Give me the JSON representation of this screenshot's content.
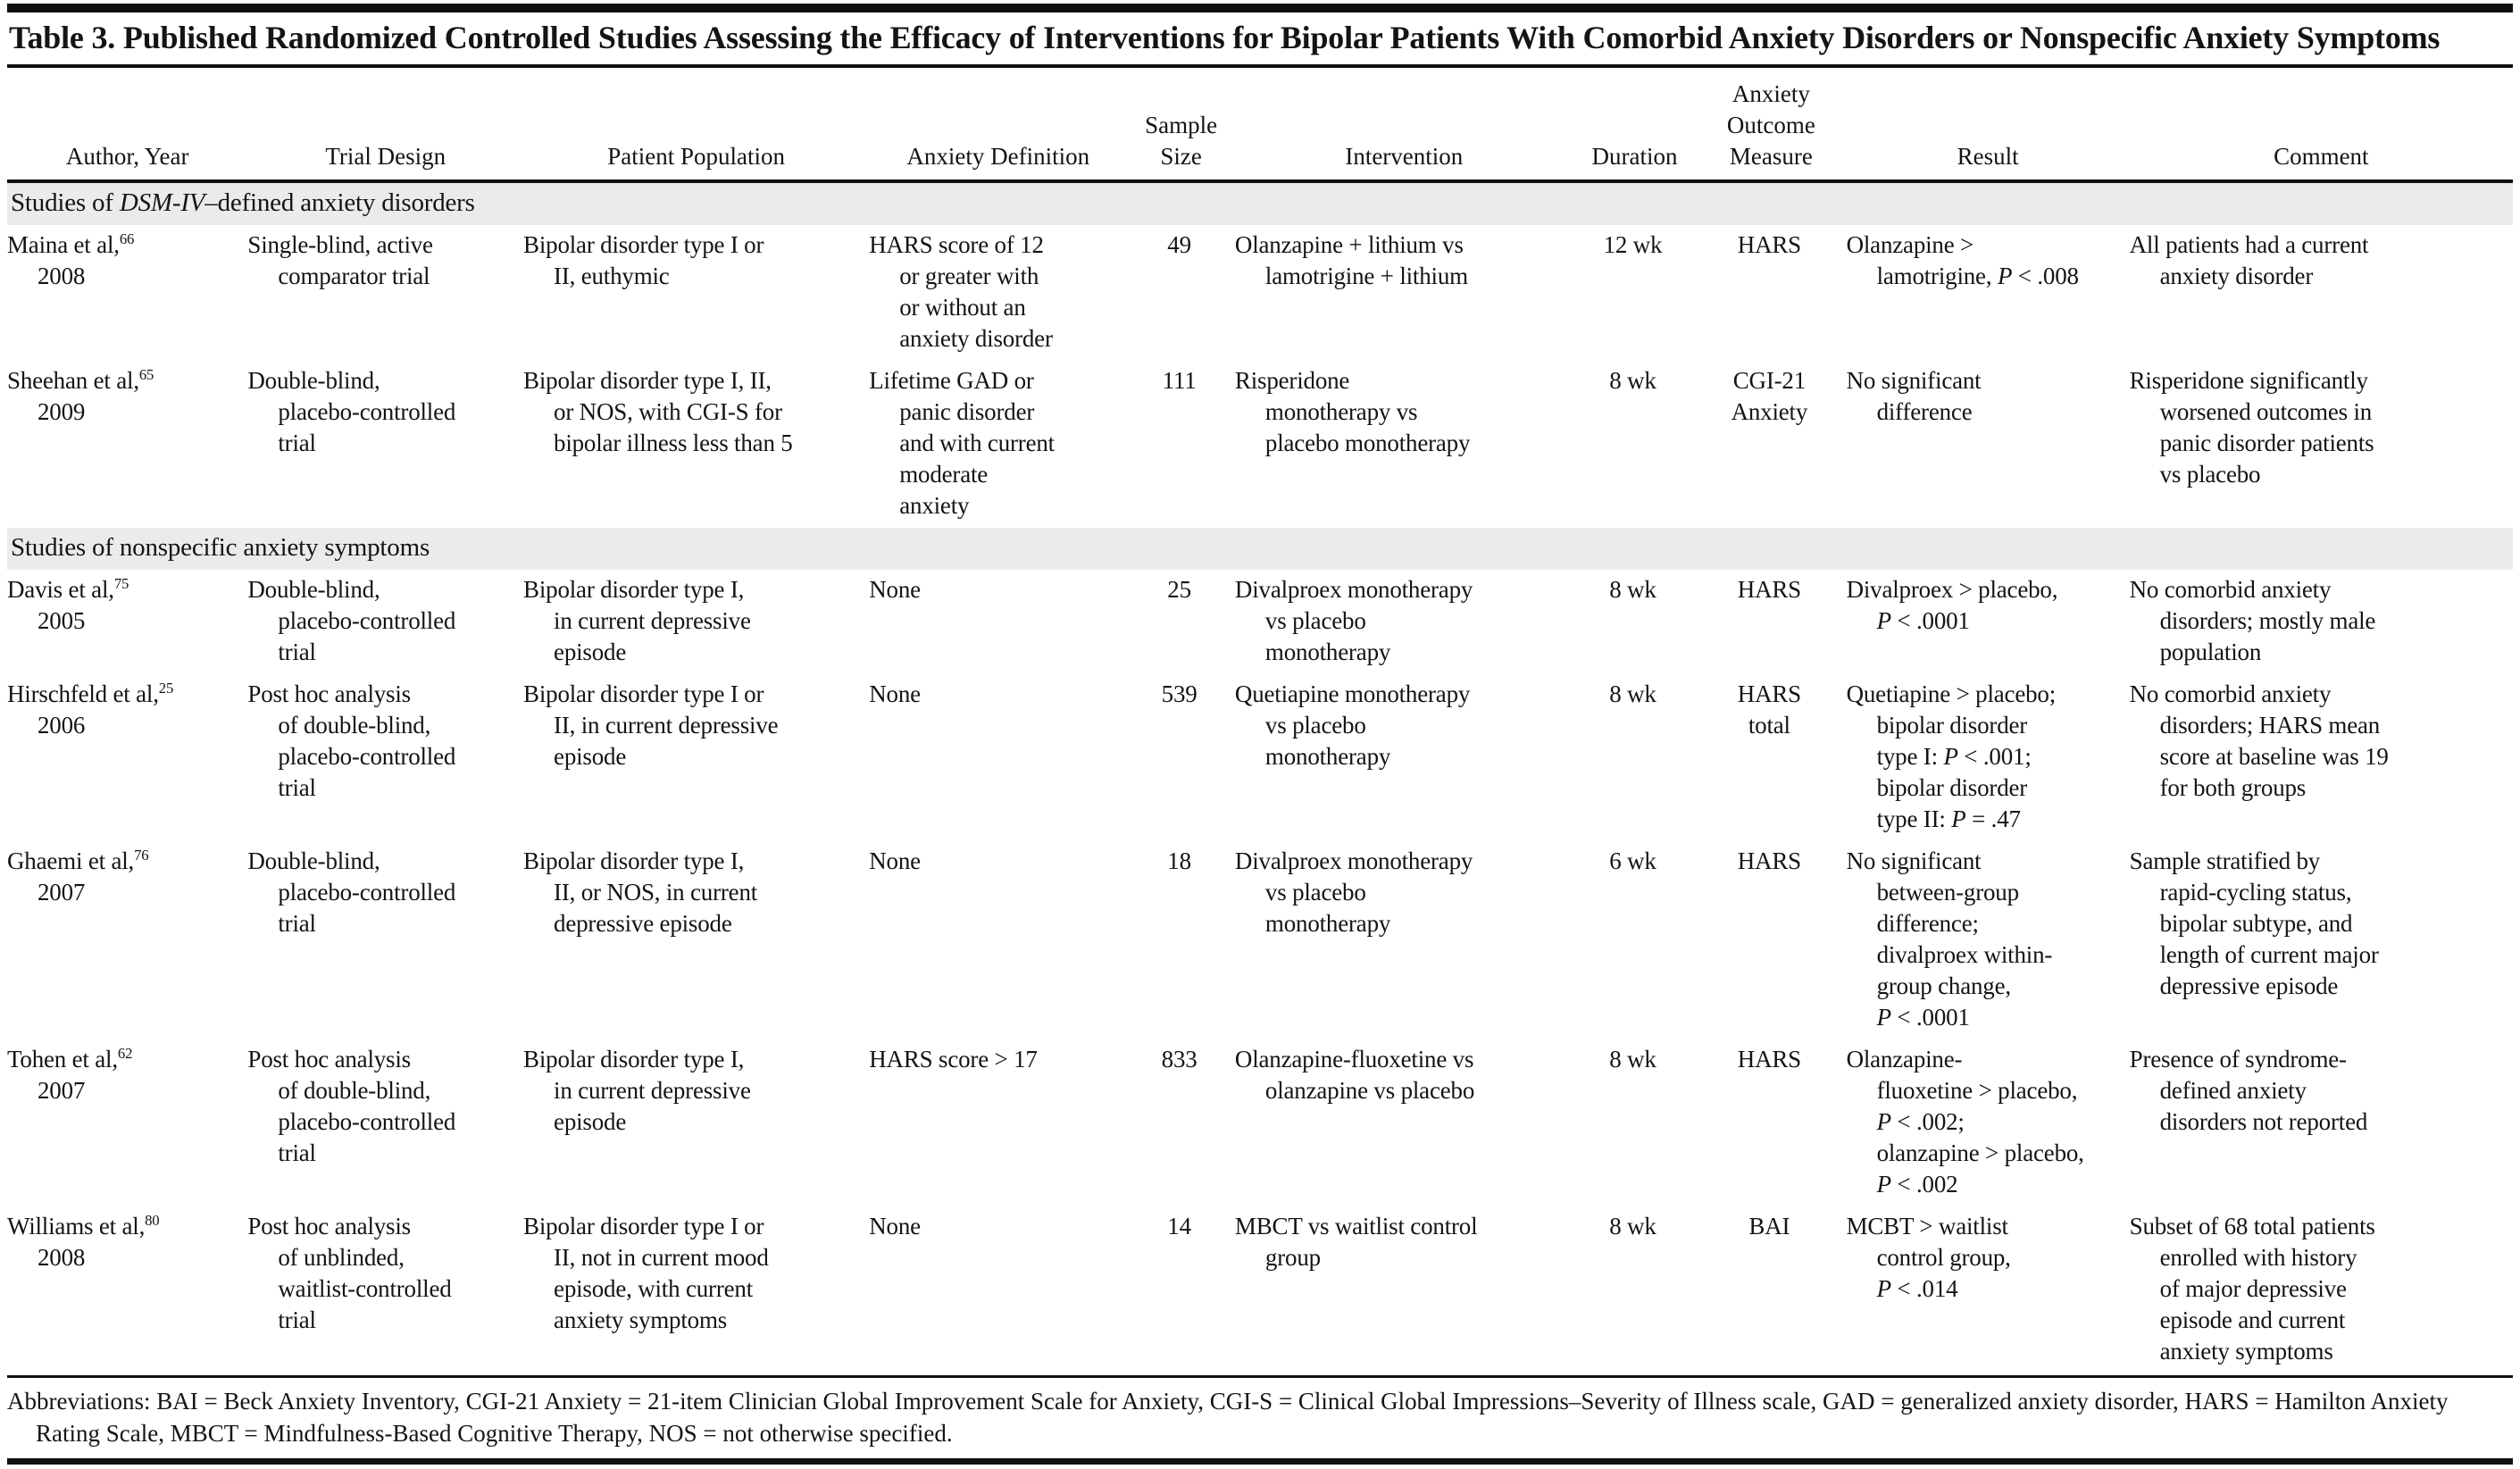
{
  "title": "Table 3. Published Randomized Controlled Studies Assessing the Efficacy of Interventions for Bipolar Patients With Comorbid Anxiety Disorders or Nonspecific Anxiety Symptoms",
  "colors": {
    "text": "#141414",
    "rule": "#111111",
    "section_band": "#ebebeb"
  },
  "table": {
    "columns": [
      "Author, Year",
      "Trial Design",
      "Patient Population",
      "Anxiety Definition",
      "Sample\nSize",
      "Intervention",
      "Duration",
      "Anxiety\nOutcome\nMeasure",
      "Result",
      "Comment"
    ],
    "sections": [
      {
        "label": "Studies of *DSM-IV*–defined anxiety disorders",
        "rows": [
          {
            "author": "Maina et al,^66^\n2008",
            "trial_design": "Single-blind, active\ncomparator trial",
            "population": "Bipolar disorder type I or\nII, euthymic",
            "anxiety_definition": "HARS score of 12\nor greater with\nor without an\nanxiety disorder",
            "sample_size": "49",
            "intervention": "Olanzapine + lithium vs\nlamotrigine + lithium",
            "duration": "12 wk",
            "outcome_measure": "HARS",
            "result": "Olanzapine >\nlamotrigine, *P* < .008",
            "comment": "All patients had a current\nanxiety disorder"
          },
          {
            "author": "Sheehan et al,^65^\n2009",
            "trial_design": "Double-blind,\nplacebo-controlled\ntrial",
            "population": "Bipolar disorder type I, II,\nor NOS, with CGI-S for\nbipolar illness less than 5",
            "anxiety_definition": "Lifetime GAD or\npanic disorder\nand with current\nmoderate\nanxiety",
            "sample_size": "111",
            "intervention": "Risperidone\nmonotherapy vs\nplacebo monotherapy",
            "duration": "8 wk",
            "outcome_measure": "CGI-21\nAnxiety",
            "result": "No significant\ndifference",
            "comment": "Risperidone significantly\nworsened outcomes in\npanic disorder patients\nvs placebo"
          }
        ]
      },
      {
        "label": "Studies of nonspecific anxiety symptoms",
        "rows": [
          {
            "author": "Davis et al,^75^\n2005",
            "trial_design": "Double-blind,\nplacebo-controlled\ntrial",
            "population": "Bipolar disorder type I,\nin current depressive\nepisode",
            "anxiety_definition": "None",
            "sample_size": "25",
            "intervention": "Divalproex monotherapy\nvs placebo\nmonotherapy",
            "duration": "8 wk",
            "outcome_measure": "HARS",
            "result": "Divalproex > placebo,\n*P* < .0001",
            "comment": "No comorbid anxiety\ndisorders; mostly male\npopulation"
          },
          {
            "author": "Hirschfeld et al,^25^\n2006",
            "trial_design": "Post hoc analysis\nof double-blind,\nplacebo-controlled\ntrial",
            "population": "Bipolar disorder type I or\nII, in current depressive\nepisode",
            "anxiety_definition": "None",
            "sample_size": "539",
            "intervention": "Quetiapine monotherapy\nvs placebo\nmonotherapy",
            "duration": "8 wk",
            "outcome_measure": "HARS\ntotal",
            "result": "Quetiapine > placebo;\nbipolar disorder\ntype I: *P* < .001;\nbipolar disorder\ntype II: *P* = .47",
            "comment": "No comorbid anxiety\ndisorders; HARS mean\nscore at baseline was 19\nfor both groups"
          },
          {
            "author": "Ghaemi et al,^76^\n2007",
            "trial_design": "Double-blind,\nplacebo-controlled\ntrial",
            "population": "Bipolar disorder type I,\nII, or NOS, in current\ndepressive episode",
            "anxiety_definition": "None",
            "sample_size": "18",
            "intervention": "Divalproex monotherapy\nvs placebo\nmonotherapy",
            "duration": "6 wk",
            "outcome_measure": "HARS",
            "result": "No significant\nbetween-group\ndifference;\ndivalproex within-\ngroup change,\n*P* < .0001",
            "comment": "Sample stratified by\nrapid-cycling status,\nbipolar subtype, and\nlength of current major\ndepressive episode"
          },
          {
            "author": "Tohen et al,^62^\n2007",
            "trial_design": "Post hoc analysis\nof double-blind,\nplacebo-controlled\ntrial",
            "population": "Bipolar disorder type I,\nin current depressive\nepisode",
            "anxiety_definition": "HARS score > 17",
            "sample_size": "833",
            "intervention": "Olanzapine-fluoxetine vs\nolanzapine vs placebo",
            "duration": "8 wk",
            "outcome_measure": "HARS",
            "result": "Olanzapine-\nfluoxetine > placebo,\n*P* < .002;\nolanzapine > placebo,\n*P* < .002",
            "comment": "Presence of syndrome-\ndefined anxiety\ndisorders not reported"
          },
          {
            "author": "Williams et al,^80^\n2008",
            "trial_design": "Post hoc analysis\nof unblinded,\nwaitlist-controlled\ntrial",
            "population": "Bipolar disorder type I or\nII, not in current mood\nepisode, with current\nanxiety symptoms",
            "anxiety_definition": "None",
            "sample_size": "14",
            "intervention": "MBCT vs waitlist control\ngroup",
            "duration": "8 wk",
            "outcome_measure": "BAI",
            "result": "MCBT > waitlist\ncontrol group,\n*P* < .014",
            "comment": "Subset of 68 total patients\nenrolled with history\nof major depressive\nepisode and current\nanxiety symptoms"
          }
        ]
      }
    ]
  },
  "footnote": "Abbreviations: BAI = Beck Anxiety Inventory, CGI-21 Anxiety = 21-item Clinician Global Improvement Scale for Anxiety, CGI-S = Clinical Global Impressions–Severity of Illness scale, GAD = generalized anxiety disorder, HARS = Hamilton Anxiety Rating Scale, MBCT = Mindfulness-Based Cognitive Therapy, NOS = not otherwise specified."
}
